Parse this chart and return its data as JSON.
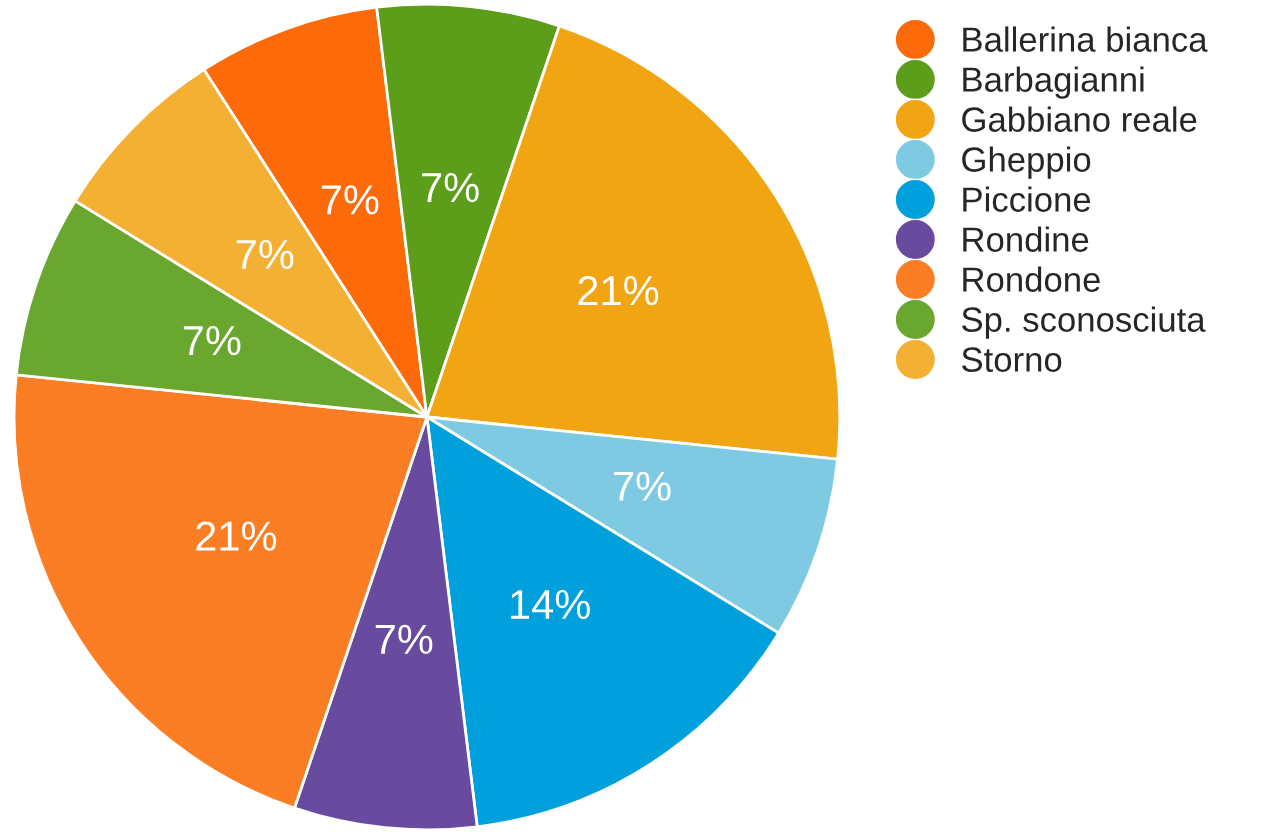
{
  "chart_data": {
    "type": "pie",
    "categories": [
      "Ballerina bianca",
      "Barbagianni",
      "Gabbiano reale",
      "Gheppio",
      "Piccione",
      "Rondine",
      "Rondone",
      "Sp. sconosciuta",
      "Storno"
    ],
    "values": [
      7.14,
      7.14,
      21.43,
      7.14,
      14.29,
      7.14,
      21.43,
      7.14,
      7.15
    ],
    "value_labels": [
      "7%",
      "7%",
      "21%",
      "7%",
      "14%",
      "7%",
      "21%",
      "7%",
      "7%"
    ],
    "colors": [
      "#fd6a0a",
      "#5c9e1a",
      "#f2a512",
      "#7ecae2",
      "#00a0dc",
      "#684b9e",
      "#fb7d24",
      "#6aa72e",
      "#f3b033"
    ],
    "legend": "right"
  }
}
